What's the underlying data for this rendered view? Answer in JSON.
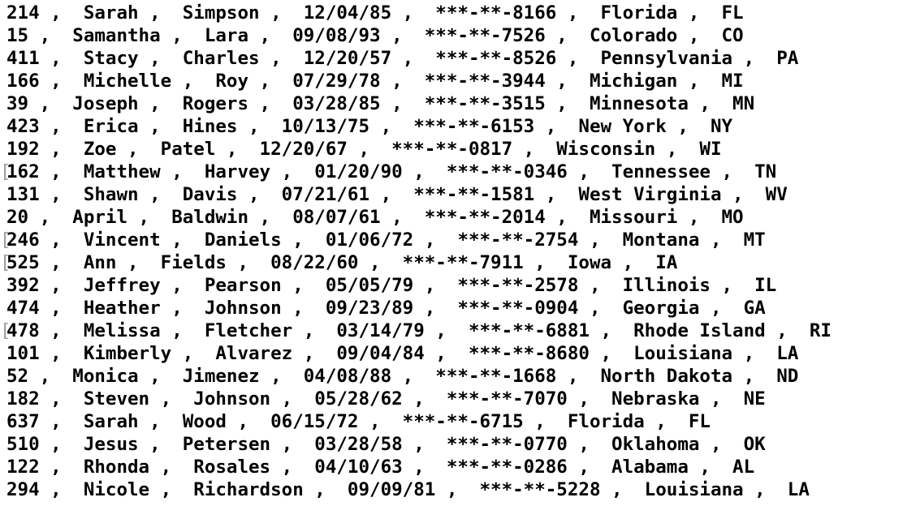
{
  "lines": [
    {
      "marker": "",
      "text": "214 ,  Sarah ,  Simpson ,  12/04/85 ,  ***-**-8166 ,  Florida ,  FL"
    },
    {
      "marker": "",
      "text": "15 ,  Samantha ,  Lara ,  09/08/93 ,  ***-**-7526 ,  Colorado ,  CO"
    },
    {
      "marker": "",
      "text": "411 ,  Stacy ,  Charles ,  12/20/57 ,  ***-**-8526 ,  Pennsylvania ,  PA"
    },
    {
      "marker": "",
      "text": "166 ,  Michelle ,  Roy ,  07/29/78 ,  ***-**-3944 ,  Michigan ,  MI"
    },
    {
      "marker": "",
      "text": "39 ,  Joseph ,  Rogers ,  03/28/85 ,  ***-**-3515 ,  Minnesota ,  MN"
    },
    {
      "marker": "",
      "text": "423 ,  Erica ,  Hines ,  10/13/75 ,  ***-**-6153 ,  New York ,  NY"
    },
    {
      "marker": "",
      "text": "192 ,  Zoe ,  Patel ,  12/20/67 ,  ***-**-0817 ,  Wisconsin ,  WI"
    },
    {
      "marker": "[",
      "text": "162 ,  Matthew ,  Harvey ,  01/20/90 ,  ***-**-0346 ,  Tennessee ,  TN"
    },
    {
      "marker": "",
      "text": "131 ,  Shawn ,  Davis ,  07/21/61 ,  ***-**-1581 ,  West Virginia ,  WV"
    },
    {
      "marker": "",
      "text": "20 ,  April ,  Baldwin ,  08/07/61 ,  ***-**-2014 ,  Missouri ,  MO"
    },
    {
      "marker": "[",
      "text": "246 ,  Vincent ,  Daniels ,  01/06/72 ,  ***-**-2754 ,  Montana ,  MT"
    },
    {
      "marker": "[",
      "text": "525 ,  Ann ,  Fields ,  08/22/60 ,  ***-**-7911 ,  Iowa ,  IA"
    },
    {
      "marker": "",
      "text": "392 ,  Jeffrey ,  Pearson ,  05/05/79 ,  ***-**-2578 ,  Illinois ,  IL"
    },
    {
      "marker": "",
      "text": "474 ,  Heather ,  Johnson ,  09/23/89 ,  ***-**-0904 ,  Georgia ,  GA"
    },
    {
      "marker": "[",
      "text": "478 ,  Melissa ,  Fletcher ,  03/14/79 ,  ***-**-6881 ,  Rhode Island ,  RI"
    },
    {
      "marker": "",
      "text": "101 ,  Kimberly ,  Alvarez ,  09/04/84 ,  ***-**-8680 ,  Louisiana ,  LA"
    },
    {
      "marker": "",
      "text": "52 ,  Monica ,  Jimenez ,  04/08/88 ,  ***-**-1668 ,  North Dakota ,  ND"
    },
    {
      "marker": "",
      "text": "182 ,  Steven ,  Johnson ,  05/28/62 ,  ***-**-7070 ,  Nebraska ,  NE"
    },
    {
      "marker": "",
      "text": "637 ,  Sarah ,  Wood ,  06/15/72 ,  ***-**-6715 ,  Florida ,  FL"
    },
    {
      "marker": "",
      "text": "510 ,  Jesus ,  Petersen ,  03/28/58 ,  ***-**-0770 ,  Oklahoma ,  OK"
    },
    {
      "marker": "",
      "text": "122 ,  Rhonda ,  Rosales ,  04/10/63 ,  ***-**-0286 ,  Alabama ,  AL"
    },
    {
      "marker": "",
      "text": "294 ,  Nicole ,  Richardson ,  09/09/81 ,  ***-**-5228 ,  Louisiana ,  LA"
    }
  ]
}
